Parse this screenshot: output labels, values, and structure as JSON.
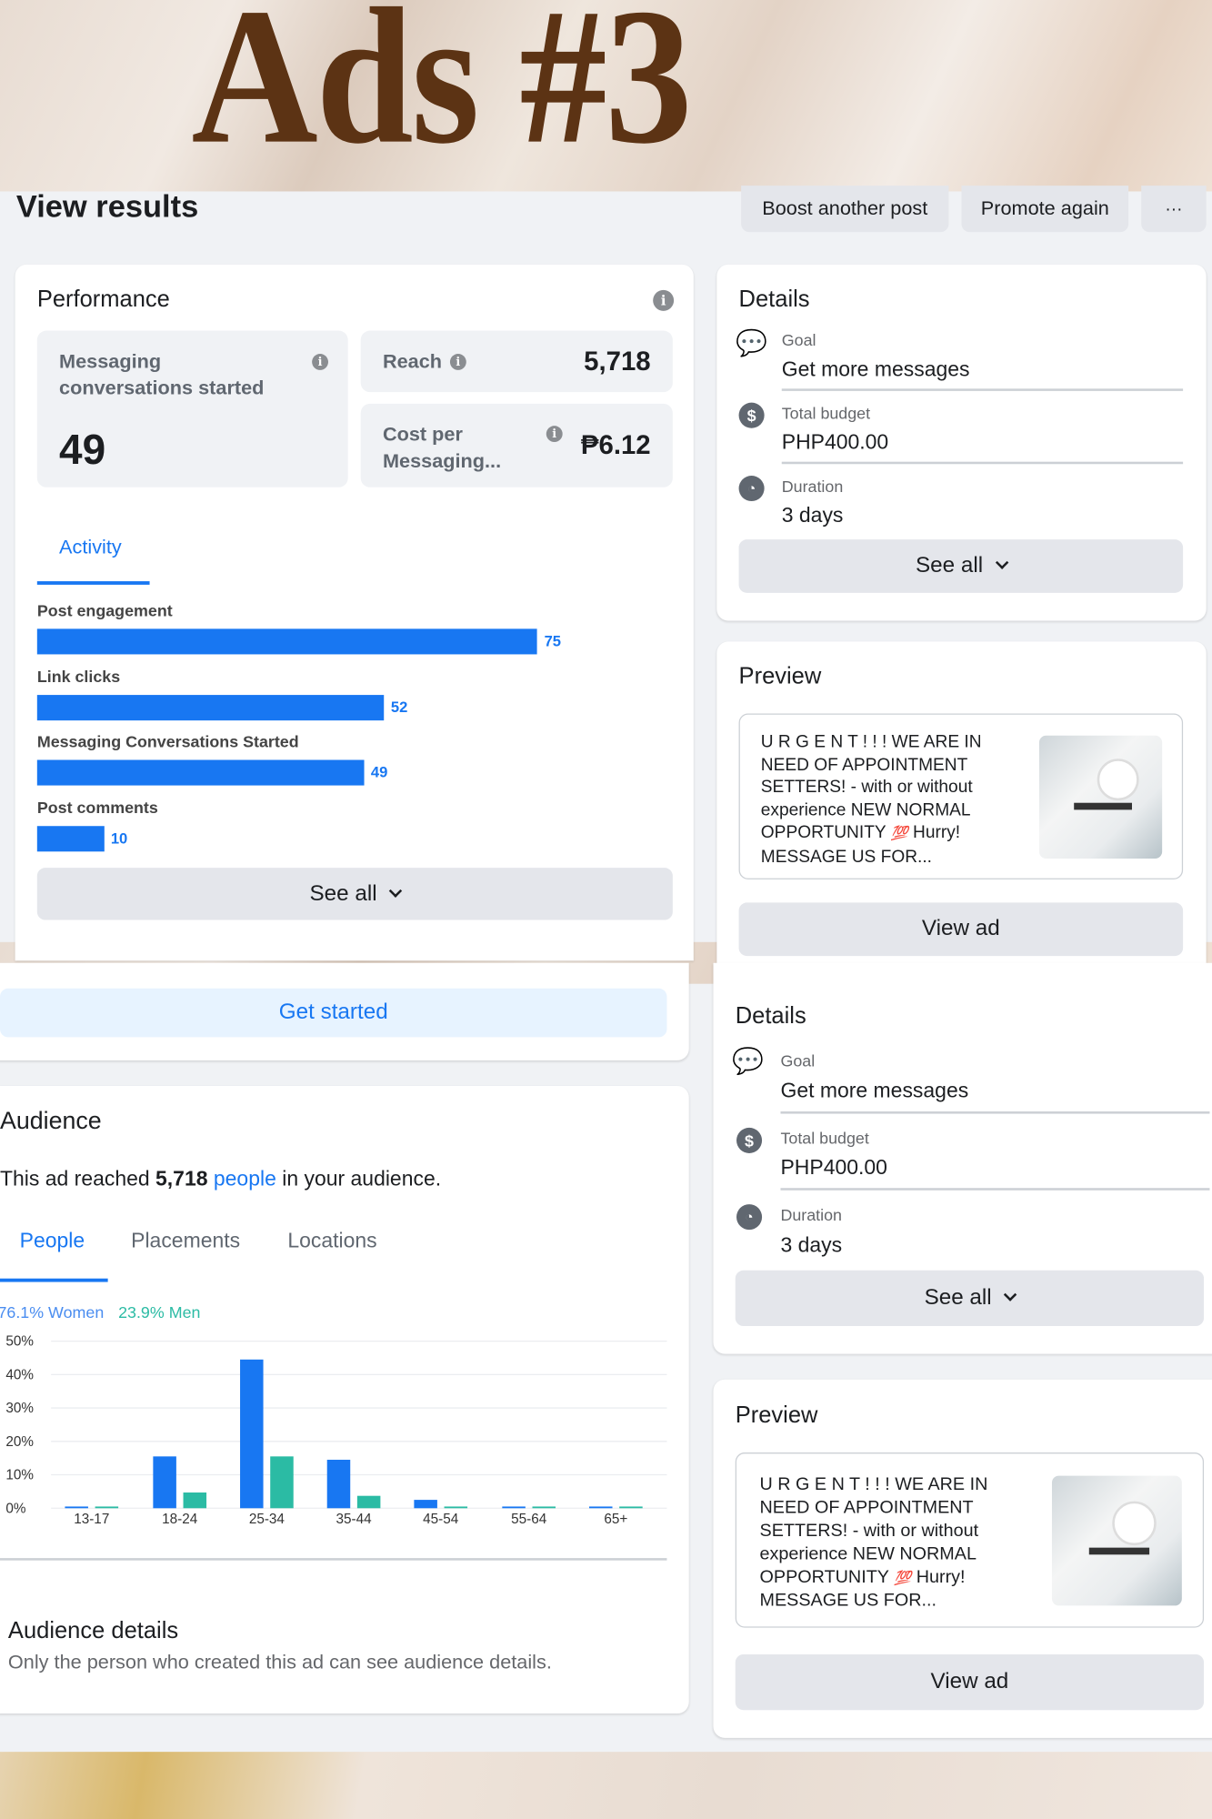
{
  "overlay_title": "Ads #3",
  "header": {
    "title": "View results",
    "boost_label": "Boost another post",
    "promote_label": "Promote again",
    "more_label": "···"
  },
  "performance": {
    "title": "Performance",
    "stat_main": {
      "label": "Messaging conversations started",
      "value": "49"
    },
    "reach": {
      "label": "Reach",
      "value": "5,718"
    },
    "cost": {
      "label": "Cost per Messaging...",
      "value": "₱6.12"
    },
    "tab": "Activity",
    "activity": [
      {
        "label": "Post engagement",
        "value": 75
      },
      {
        "label": "Link clicks",
        "value": 52
      },
      {
        "label": "Messaging Conversations Started",
        "value": 49
      },
      {
        "label": "Post comments",
        "value": 10
      }
    ],
    "see_all": "See all"
  },
  "details": {
    "title": "Details",
    "goal_label": "Goal",
    "goal_value": "Get more messages",
    "budget_label": "Total budget",
    "budget_value": "PHP400.00",
    "duration_label": "Duration",
    "duration_value": "3 days",
    "see_all": "See all"
  },
  "preview": {
    "title": "Preview",
    "text": "U R G E N T ! ! ! WE ARE IN NEED OF APPOINTMENT SETTERS! - with or without experience NEW NORMAL OPPORTUNITY",
    "emoji": "💯",
    "text_end": "Hurry! MESSAGE US FOR...",
    "view_ad": "View ad"
  },
  "get_started": "Get started",
  "audience": {
    "title": "Audience",
    "reach_pre": "This ad reached ",
    "reach_num": "5,718",
    "reach_link": "people",
    "reach_post": " in your audience.",
    "tabs": [
      "People",
      "Placements",
      "Locations"
    ],
    "details_title": "Audience details",
    "details_text": "Only the person who created this ad can see audience details."
  },
  "colors": {
    "accent": "#1877f2",
    "women": "#1877f2",
    "men": "#2bbba4",
    "title_brown": "#5c3314"
  },
  "chart_data": {
    "type": "bar",
    "categories": [
      "13-17",
      "18-24",
      "25-34",
      "35-44",
      "45-54",
      "55-64",
      "65+"
    ],
    "series": [
      {
        "name": "76.1% Women",
        "values": [
          0.5,
          15.5,
          44.5,
          14.5,
          2.5,
          0.5,
          0.5
        ]
      },
      {
        "name": "23.9% Men",
        "values": [
          0.5,
          4.7,
          15.5,
          3.7,
          0.5,
          0.5,
          0.5
        ]
      }
    ],
    "yticks": [
      "0%",
      "10%",
      "20%",
      "30%",
      "40%",
      "50%"
    ],
    "ylim": [
      0,
      50
    ],
    "grid": true,
    "legend": "top-left"
  }
}
